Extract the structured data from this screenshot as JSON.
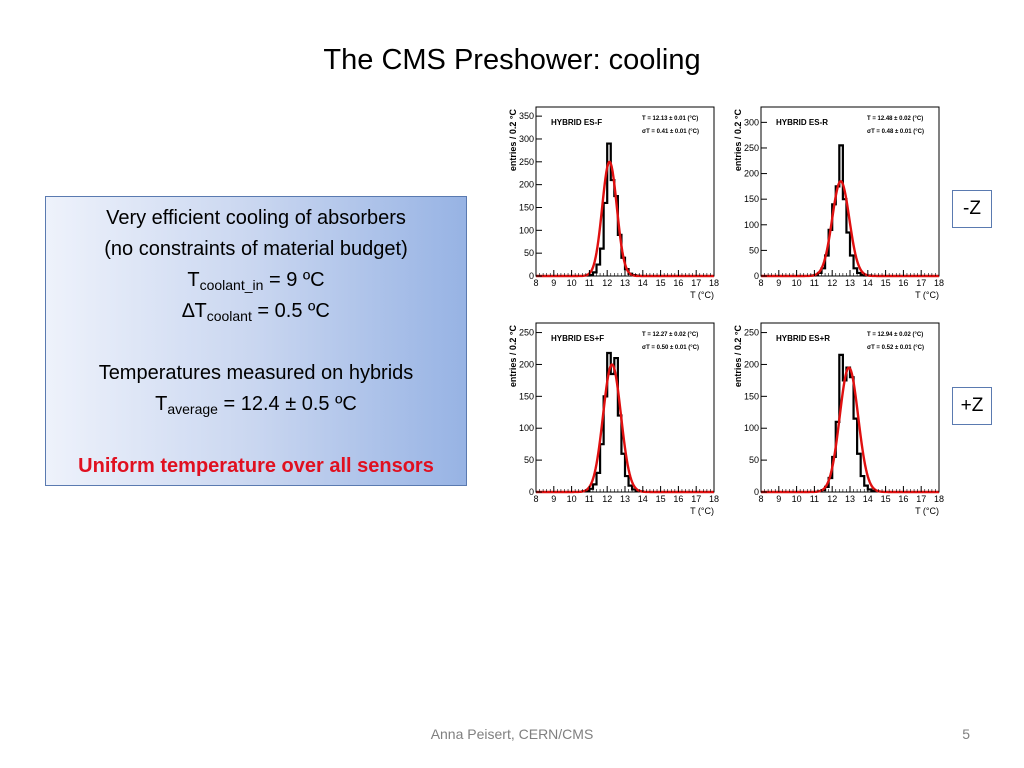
{
  "slide": {
    "title": "The CMS Preshower: cooling",
    "footer": "Anna Peisert, CERN/CMS",
    "page_number": "5"
  },
  "infobox": {
    "line1": "Very efficient cooling of absorbers",
    "line2": "(no constraints of material budget)",
    "coolant_in_T": "T",
    "coolant_in_sub": "coolant_in",
    "coolant_in_value": " = 9 ºC",
    "delta_symbol": "∆",
    "delta_T": "T",
    "delta_sub": "coolant",
    "delta_value": " = 0.5 ºC",
    "line5": "Temperatures measured on hybrids",
    "avg_T": "T",
    "avg_sub": "average",
    "avg_value": " = 12.4 ± 0.5 ºC",
    "highlight": "Uniform temperature over all sensors",
    "highlight_color": "#e01020"
  },
  "labels": {
    "minus_z": "-Z",
    "plus_z": "+Z"
  },
  "chart_data": [
    {
      "type": "bar",
      "title": "HYBRID ES-F",
      "stat_mean": "T = 12.13 ± 0.01 (°C)",
      "stat_sigma": "σT = 0.41 ± 0.01 (°C)",
      "xlabel": "T (°C)",
      "ylabel": "entries / 0.2 °C",
      "xlim": [
        8,
        18
      ],
      "ylim": [
        0,
        370
      ],
      "xticks": [
        "8",
        "9",
        "10",
        "11",
        "12",
        "13",
        "14",
        "15",
        "16",
        "17",
        "18"
      ],
      "yticks": [
        "0",
        "50",
        "100",
        "150",
        "200",
        "250",
        "300",
        "350"
      ],
      "bin_width": 0.2,
      "hist_x": [
        10.8,
        11.0,
        11.2,
        11.4,
        11.6,
        11.8,
        12.0,
        12.2,
        12.4,
        12.6,
        12.8,
        13.0,
        13.2,
        13.4,
        13.6
      ],
      "hist_y": [
        1,
        2,
        8,
        25,
        60,
        160,
        290,
        210,
        175,
        90,
        40,
        15,
        5,
        2,
        1
      ],
      "fit": {
        "mean": 12.13,
        "sigma": 0.41,
        "amplitude": 250
      }
    },
    {
      "type": "bar",
      "title": "HYBRID ES-R",
      "stat_mean": "T = 12.48 ± 0.02 (°C)",
      "stat_sigma": "σT = 0.48 ± 0.01 (°C)",
      "xlabel": "T (°C)",
      "ylabel": "entries / 0.2 °C",
      "xlim": [
        8,
        18
      ],
      "ylim": [
        0,
        330
      ],
      "xticks": [
        "8",
        "9",
        "10",
        "11",
        "12",
        "13",
        "14",
        "15",
        "16",
        "17",
        "18"
      ],
      "yticks": [
        "0",
        "50",
        "100",
        "150",
        "200",
        "250",
        "300"
      ],
      "bin_width": 0.2,
      "hist_x": [
        10.8,
        11.0,
        11.2,
        11.4,
        11.6,
        11.8,
        12.0,
        12.2,
        12.4,
        12.6,
        12.8,
        13.0,
        13.2,
        13.4,
        13.6,
        13.8,
        14.0
      ],
      "hist_y": [
        1,
        2,
        6,
        15,
        40,
        90,
        140,
        175,
        255,
        150,
        85,
        40,
        15,
        6,
        2,
        1,
        1
      ],
      "fit": {
        "mean": 12.48,
        "sigma": 0.48,
        "amplitude": 185
      }
    },
    {
      "type": "bar",
      "title": "HYBRID ES+F",
      "stat_mean": "T = 12.27 ± 0.02 (°C)",
      "stat_sigma": "σT = 0.50 ± 0.01 (°C)",
      "xlabel": "T (°C)",
      "ylabel": "entries / 0.2 °C",
      "xlim": [
        8,
        18
      ],
      "ylim": [
        0,
        265
      ],
      "xticks": [
        "8",
        "9",
        "10",
        "11",
        "12",
        "13",
        "14",
        "15",
        "16",
        "17",
        "18"
      ],
      "yticks": [
        "0",
        "50",
        "100",
        "150",
        "200",
        "250"
      ],
      "bin_width": 0.2,
      "hist_x": [
        10.6,
        10.8,
        11.0,
        11.2,
        11.4,
        11.6,
        11.8,
        12.0,
        12.2,
        12.4,
        12.6,
        12.8,
        13.0,
        13.2,
        13.4,
        13.6,
        13.8
      ],
      "hist_y": [
        1,
        2,
        5,
        12,
        30,
        75,
        150,
        218,
        185,
        210,
        120,
        60,
        25,
        10,
        4,
        2,
        1
      ],
      "fit": {
        "mean": 12.27,
        "sigma": 0.5,
        "amplitude": 200
      }
    },
    {
      "type": "bar",
      "title": "HYBRID ES+R",
      "stat_mean": "T = 12.94 ± 0.02 (°C)",
      "stat_sigma": "σT = 0.52 ± 0.01 (°C)",
      "xlabel": "T (°C)",
      "ylabel": "entries / 0.2 °C",
      "xlim": [
        8,
        18
      ],
      "ylim": [
        0,
        265
      ],
      "xticks": [
        "8",
        "9",
        "10",
        "11",
        "12",
        "13",
        "14",
        "15",
        "16",
        "17",
        "18"
      ],
      "yticks": [
        "0",
        "50",
        "100",
        "150",
        "200",
        "250"
      ],
      "bin_width": 0.2,
      "hist_x": [
        11.2,
        11.4,
        11.6,
        11.8,
        12.0,
        12.2,
        12.4,
        12.6,
        12.8,
        13.0,
        13.2,
        13.4,
        13.6,
        13.8,
        14.0,
        14.2,
        14.4
      ],
      "hist_y": [
        1,
        3,
        8,
        22,
        55,
        110,
        215,
        175,
        195,
        180,
        115,
        60,
        25,
        10,
        4,
        2,
        1
      ],
      "fit": {
        "mean": 12.94,
        "sigma": 0.52,
        "amplitude": 195
      }
    }
  ]
}
